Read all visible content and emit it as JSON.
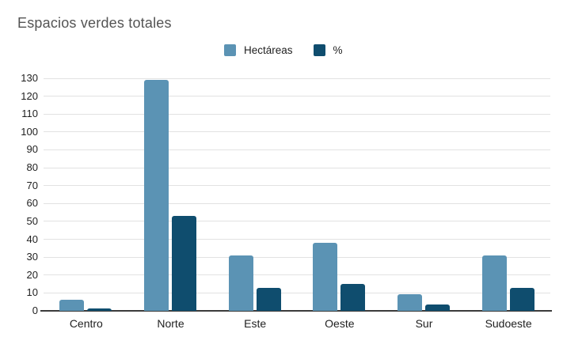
{
  "chart_data": {
    "type": "bar",
    "title": "Espacios verdes totales",
    "categories": [
      "Centro",
      "Norte",
      "Este",
      "Oeste",
      "Sur",
      "Sudoeste"
    ],
    "series": [
      {
        "name": "Hectáreas",
        "color": "#5b93b4",
        "values": [
          6,
          129,
          31,
          38,
          9.5,
          31
        ]
      },
      {
        "name": "%",
        "color": "#0f4d6e",
        "values": [
          1.5,
          53,
          13,
          15,
          3.5,
          13
        ]
      }
    ],
    "xlabel": "",
    "ylabel": "",
    "ylim": [
      0,
      130
    ],
    "ytick_step": 10,
    "grid": true,
    "legend_position": "top-center"
  },
  "colors": {
    "background": "#ffffff",
    "gridline": "#e2e2e2",
    "axis_line": "#3b3b3b",
    "title_text": "#545454",
    "tick_text": "#1f1f1f"
  }
}
